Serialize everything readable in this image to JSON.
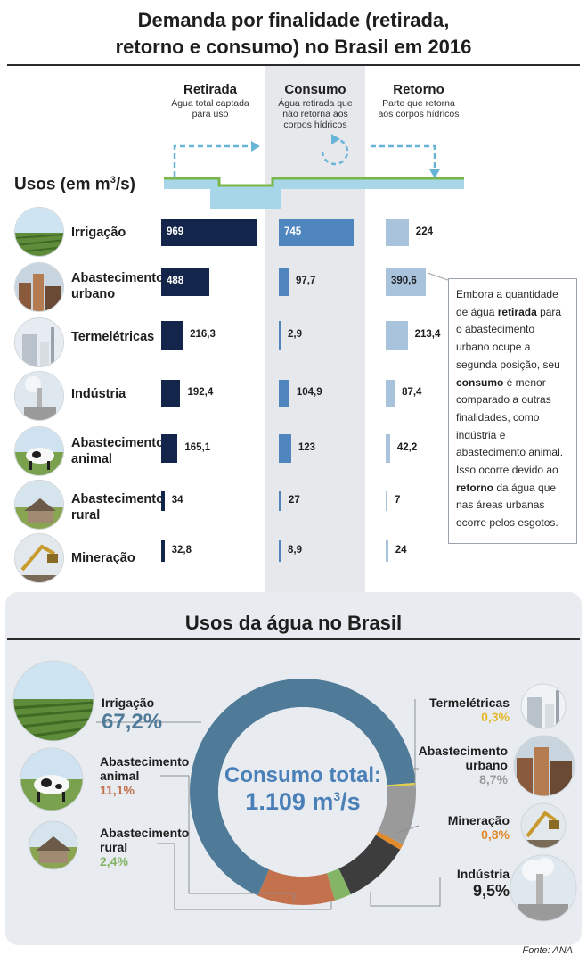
{
  "title_line1": "Demanda por finalidade (retirada,",
  "title_line2": "retorno e consumo) no Brasil em 2016",
  "columns": {
    "retirada": {
      "label": "Retirada",
      "sub1": "Água total captada",
      "sub2": "para uso"
    },
    "consumo": {
      "label": "Consumo",
      "sub1": "Água retirada que",
      "sub2": "não retorna aos",
      "sub3": "corpos hídricos"
    },
    "retorno": {
      "label": "Retorno",
      "sub1": "Parte que retorna",
      "sub2": "aos corpos hídricos"
    }
  },
  "usos_label": "Usos (em m",
  "usos_sup": "3",
  "usos_suffix": "/s)",
  "uses": [
    {
      "label1": "Irrigação",
      "label2": "",
      "retirada": "969",
      "consumo": "745",
      "retorno": "224"
    },
    {
      "label1": "Abastecimento",
      "label2": "urbano",
      "retirada": "488",
      "consumo": "97,7",
      "retorno": "390,6"
    },
    {
      "label1": "Termelétricas",
      "label2": "",
      "retirada": "216,3",
      "consumo": "2,9",
      "retorno": "213,4"
    },
    {
      "label1": "Indústria",
      "label2": "",
      "retirada": "192,4",
      "consumo": "104,9",
      "retorno": "87,4"
    },
    {
      "label1": "Abastecimento",
      "label2": "animal",
      "retirada": "165,1",
      "consumo": "123",
      "retorno": "42,2"
    },
    {
      "label1": "Abastecimento",
      "label2": "rural",
      "retirada": "34",
      "consumo": "27",
      "retorno": "7"
    },
    {
      "label1": "Mineração",
      "label2": "",
      "retirada": "32,8",
      "consumo": "8,9",
      "retorno": "24"
    }
  ],
  "note": {
    "p1": "Embora a quantidade de água ",
    "b1": "retirada",
    "p2": " para o abastecimento urbano ocupe a segunda posição, seu ",
    "b2": "consumo",
    "p3": " é menor comparado a outras finalidades, como indústria e abastecimento animal. Isso ocorre devido ao ",
    "b3": "retorno",
    "p4": " da água que nas áreas urbanas ocorre pelos esgotos."
  },
  "bottom_title": "Usos da água no Brasil",
  "center": {
    "line1": "Consumo total:",
    "value": "1.109 m",
    "sup": "3",
    "unit": "/s"
  },
  "source": "Fonte: ANA",
  "colors": {
    "retirada": "#13254a",
    "consumo": "#4f86c0",
    "retorno": "#a9c3dd",
    "irrigacao": "#4f7a98",
    "termeletricas": "#e3cf46",
    "urbano": "#9a9a9a",
    "mineracao": "#e08a2a",
    "industria": "#3d3d3d",
    "rural": "#84b466",
    "animal": "#c4714d"
  },
  "chart_data": [
    {
      "type": "bar",
      "title": "Demanda por finalidade (retirada, retorno e consumo) no Brasil em 2016",
      "ylabel": "Usos (em m³/s)",
      "categories": [
        "Irrigação",
        "Abastecimento urbano",
        "Termelétricas",
        "Indústria",
        "Abastecimento animal",
        "Abastecimento rural",
        "Mineração"
      ],
      "series": [
        {
          "name": "Retirada",
          "values": [
            969,
            488,
            216.3,
            192.4,
            165.1,
            34,
            32.8
          ]
        },
        {
          "name": "Consumo",
          "values": [
            745,
            97.7,
            2.9,
            104.9,
            123,
            27,
            8.9
          ]
        },
        {
          "name": "Retorno",
          "values": [
            224,
            390.6,
            213.4,
            87.4,
            42.2,
            7,
            24
          ]
        }
      ]
    },
    {
      "type": "pie",
      "title": "Usos da água no Brasil",
      "categories": [
        "Irrigação",
        "Termelétricas",
        "Abastecimento urbano",
        "Mineração",
        "Indústria",
        "Abastecimento rural",
        "Abastecimento animal"
      ],
      "values": [
        67.2,
        0.3,
        8.7,
        0.8,
        9.5,
        2.4,
        11.1
      ],
      "labels": [
        "67,2%",
        "0,3%",
        "8,7%",
        "0,8%",
        "9,5%",
        "2,4%",
        "11,1%"
      ],
      "center_text": "Consumo total: 1.109 m³/s"
    }
  ]
}
